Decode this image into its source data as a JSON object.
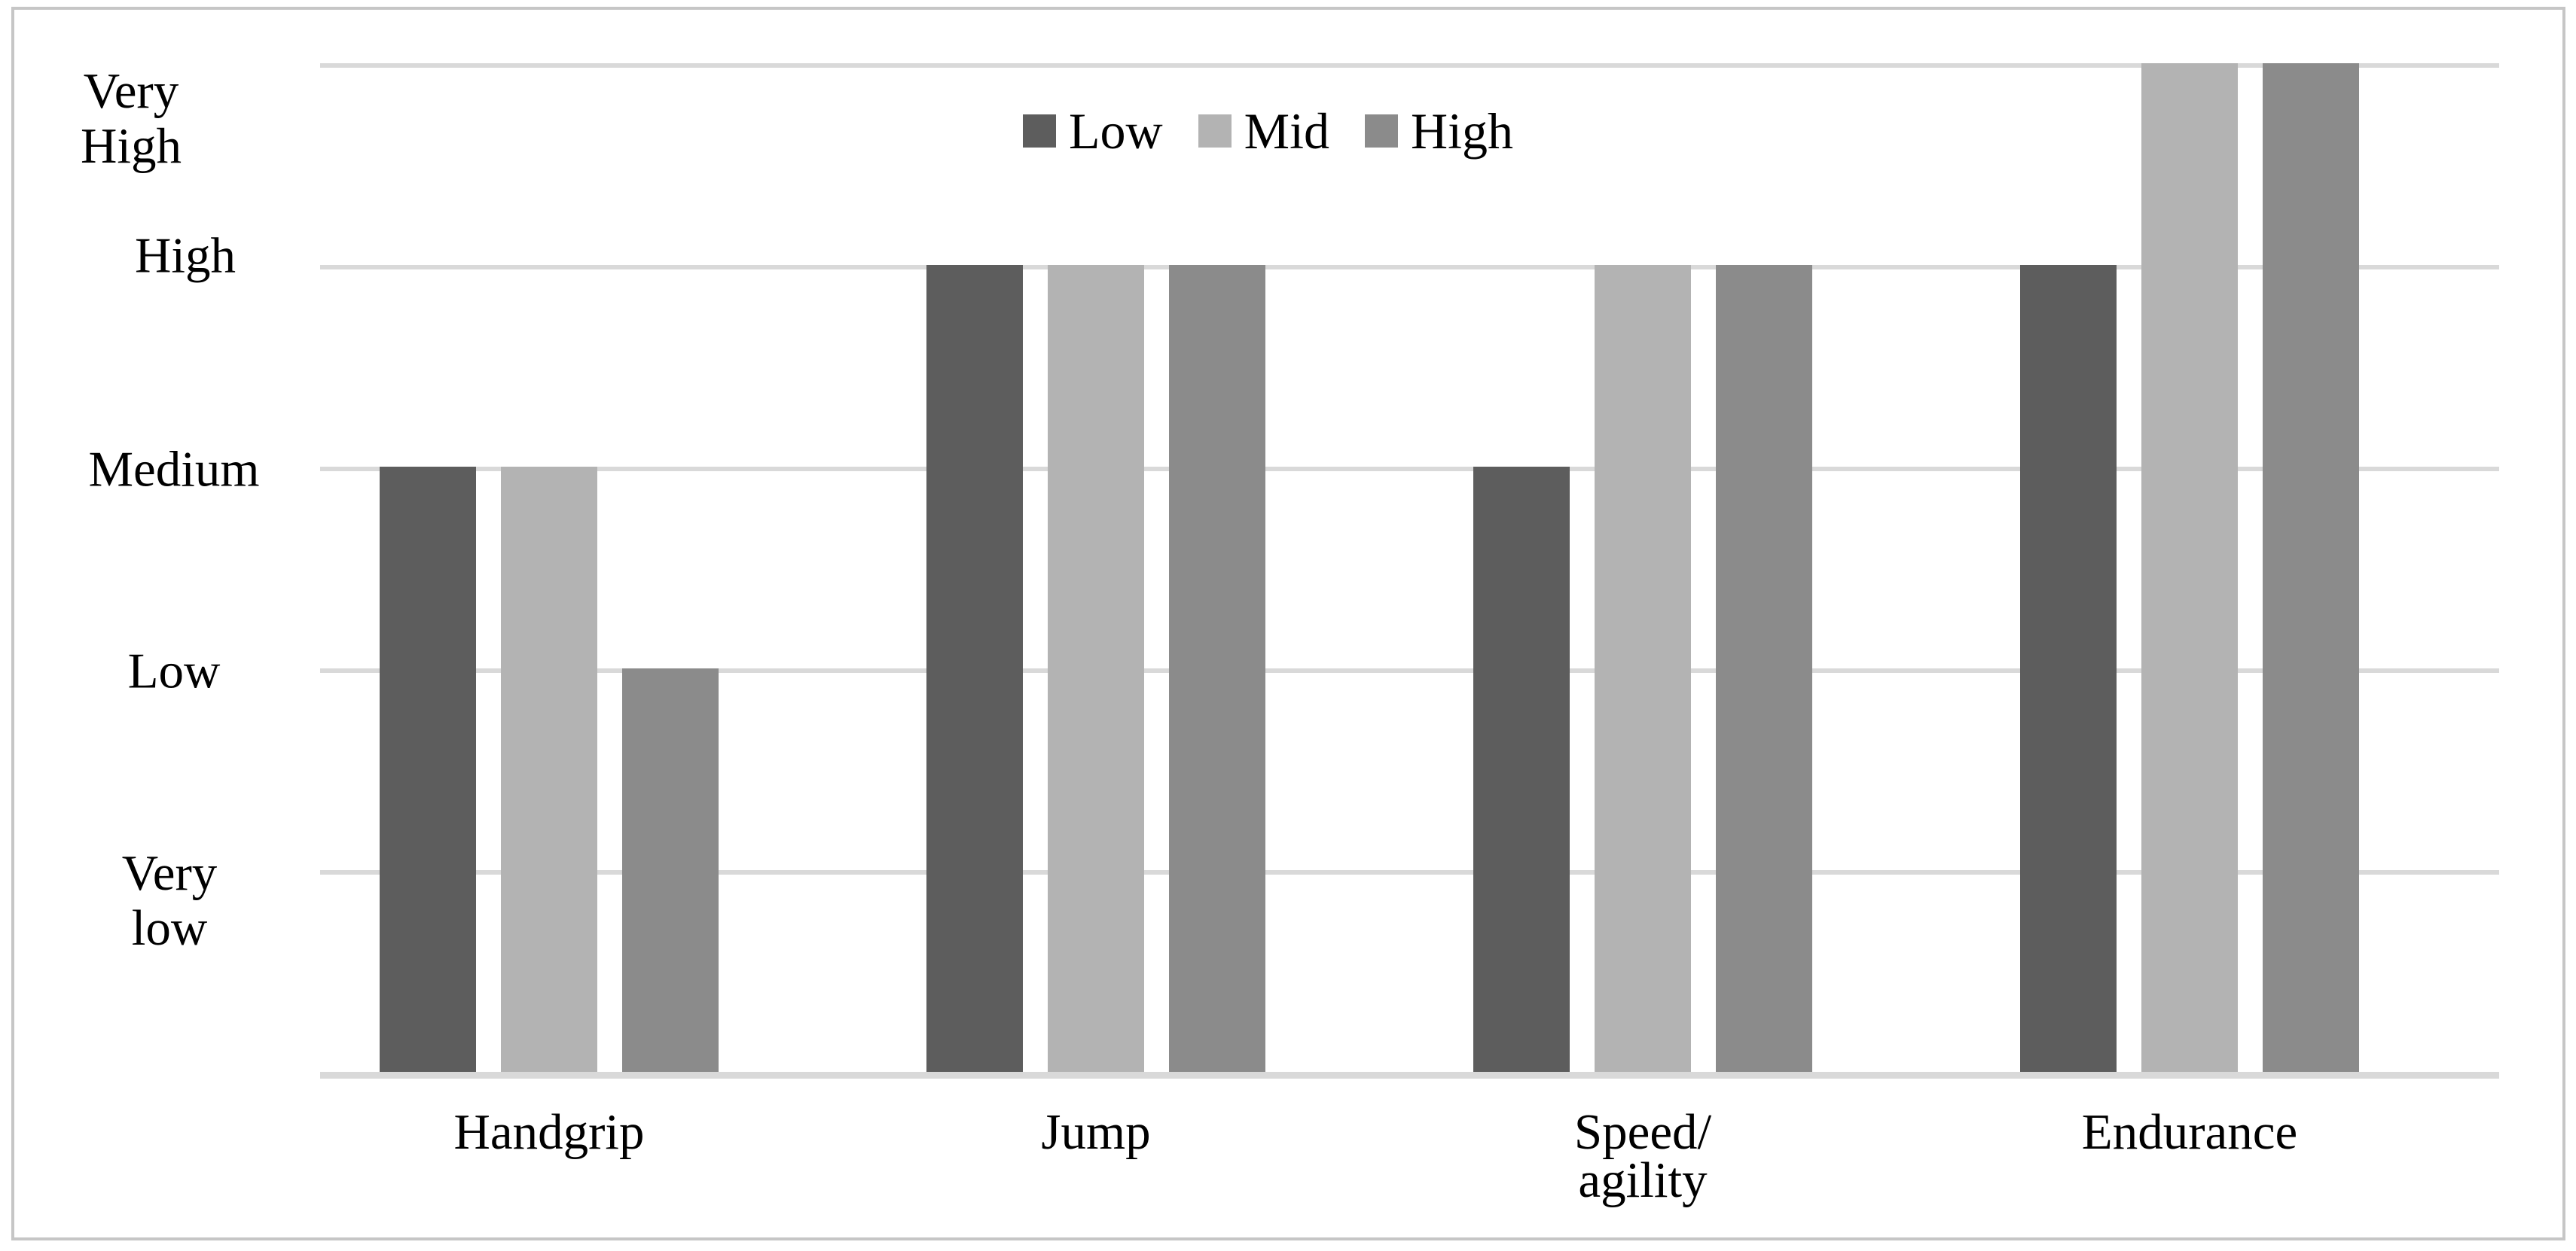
{
  "figure": {
    "background": "#ffffff",
    "border_color": "#c6c6c6"
  },
  "chart_data": {
    "type": "bar",
    "title": "",
    "categories": [
      "Handgrip",
      "Jump",
      "Speed/\nagility",
      "Endurance"
    ],
    "series": [
      {
        "name": "Low",
        "color": "#5d5d5d",
        "values": [
          3,
          4,
          3,
          4
        ]
      },
      {
        "name": "Mid",
        "color": "#b3b3b3",
        "values": [
          3,
          4,
          4,
          5
        ]
      },
      {
        "name": "High",
        "color": "#8b8b8b",
        "values": [
          2,
          4,
          4,
          5
        ]
      }
    ],
    "y_axis": {
      "min": 0,
      "max": 5,
      "tick_values": [
        1,
        2,
        3,
        4,
        5
      ],
      "tick_labels": [
        "Very\nlow",
        "Low",
        "Medium",
        "High",
        "Very\nHigh"
      ],
      "value_meaning": {
        "1": "Very low",
        "2": "Low",
        "3": "Medium",
        "4": "High",
        "5": "Very High"
      }
    },
    "x_axis": {
      "label": ""
    },
    "legend": {
      "position": "top-center",
      "entries": [
        "Low",
        "Mid",
        "High"
      ]
    },
    "grid": true,
    "gridline_color": "#d9d9d9",
    "axis_line_color": "#d9d9d9"
  }
}
